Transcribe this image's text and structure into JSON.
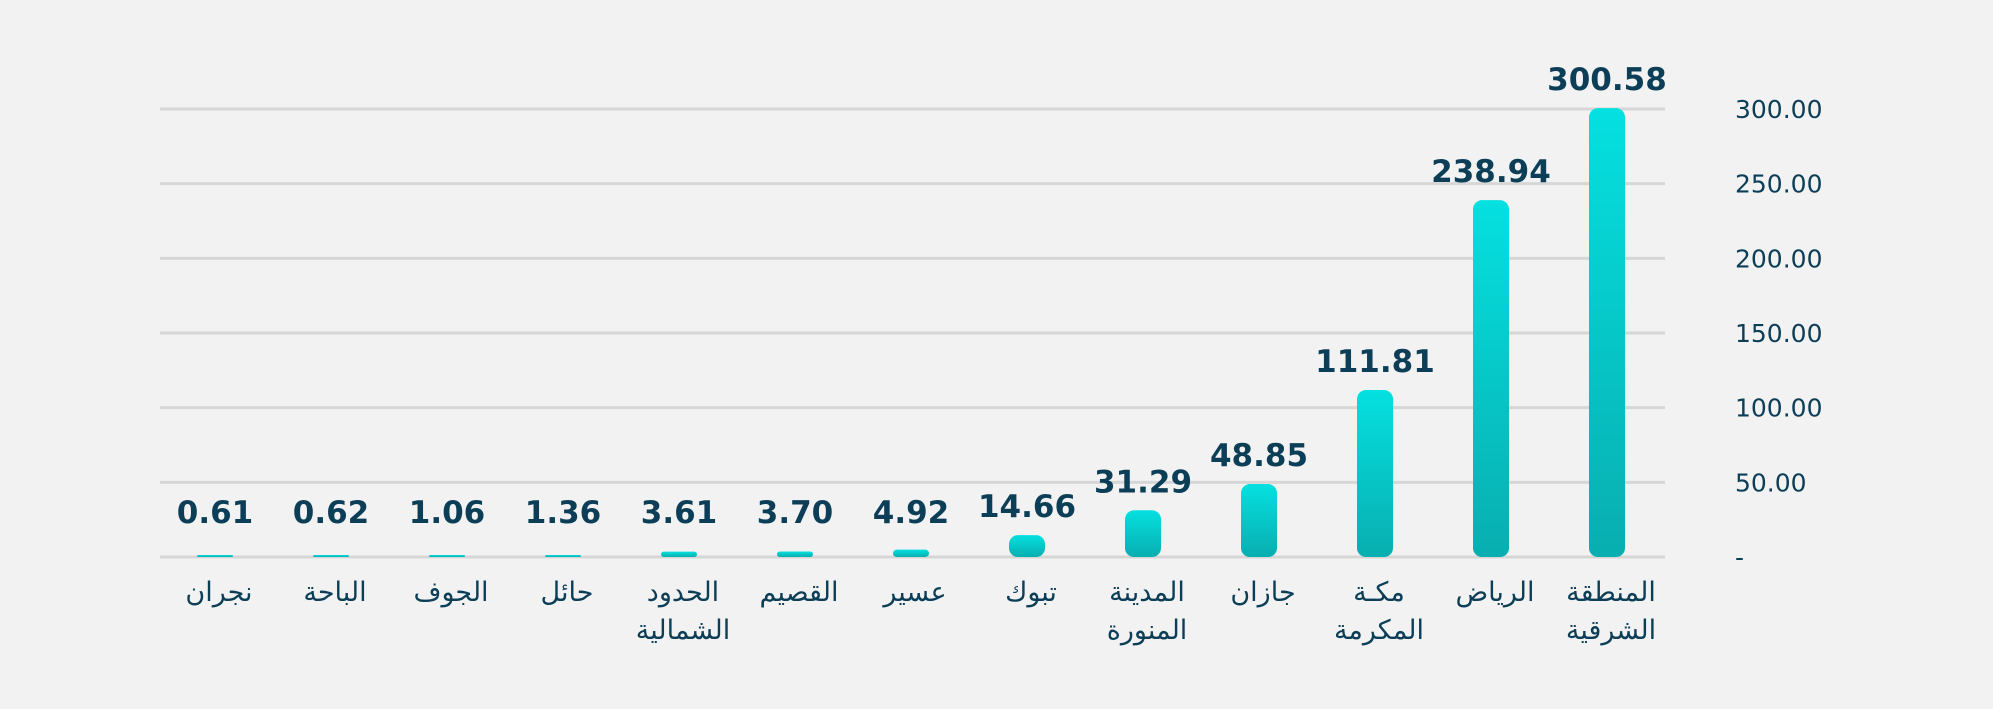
{
  "chart_data": {
    "type": "bar",
    "title": "",
    "xlabel": "",
    "ylabel": "",
    "ylim": [
      0,
      300
    ],
    "grid": true,
    "legend": "none",
    "categories": [
      [
        "المنطقة",
        "الشرقية"
      ],
      [
        "الرياض"
      ],
      [
        "مكـة",
        "المكرمة"
      ],
      [
        "جازان"
      ],
      [
        "المدينة",
        "المنورة"
      ],
      [
        "تبوك"
      ],
      [
        "عسير"
      ],
      [
        "القصيم"
      ],
      [
        "الحدود",
        "الشمالية"
      ],
      [
        "حائل"
      ],
      [
        "الجوف"
      ],
      [
        "الباحة"
      ],
      [
        "نجران"
      ]
    ],
    "values": [
      300.58,
      238.94,
      111.81,
      48.85,
      31.29,
      14.66,
      4.92,
      3.7,
      3.61,
      1.36,
      1.06,
      0.62,
      0.61
    ],
    "value_labels": [
      "300.58",
      "238.94",
      "111.81",
      "48.85",
      "31.29",
      "14.66",
      "4.92",
      "3.70",
      "3.61",
      "1.36",
      "1.06",
      "0.62",
      "0.61"
    ],
    "y_ticks": [
      {
        "value": 0,
        "label": "-"
      },
      {
        "value": 50,
        "label": "50.00"
      },
      {
        "value": 100,
        "label": "100.00"
      },
      {
        "value": 150,
        "label": "150.00"
      },
      {
        "value": 200,
        "label": "200.00"
      },
      {
        "value": 250,
        "label": "250.00"
      },
      {
        "value": 300,
        "label": "300.00"
      }
    ],
    "colors": {
      "bar_top": "#05e0e0",
      "bar_bottom": "#08aeb0",
      "label": "#0c3f57",
      "grid": "#d6d6d6",
      "background": "#f2f2f2"
    }
  }
}
